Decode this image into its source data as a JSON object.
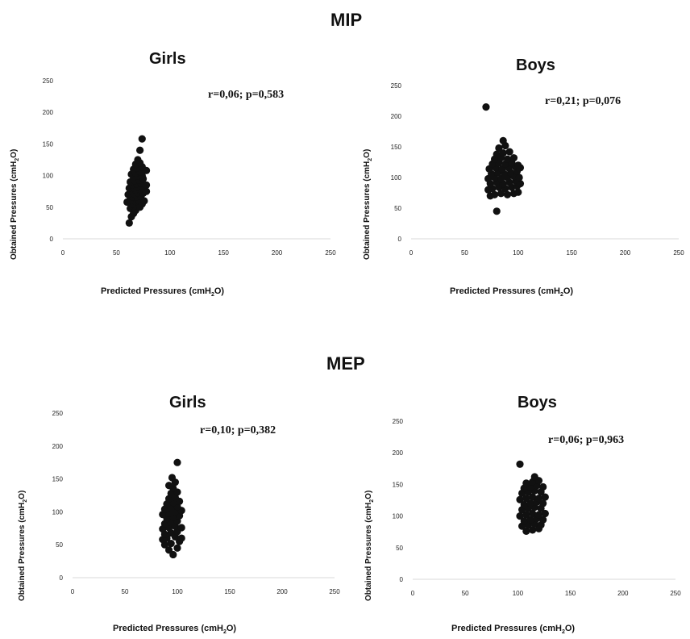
{
  "sections": {
    "mip_title": "MIP",
    "mep_title": "MEP"
  },
  "axis_text": {
    "xlabel_main": "Predicted Pressures (cmH",
    "ylabel_main": "Obtained Pressures (cmH",
    "sub": "2",
    "close": "O)"
  },
  "chart_data": [
    {
      "type": "scatter",
      "title": "Girls",
      "stats_text": "r=0,06; p=0,583",
      "xlabel": "Predicted Pressures (cmH2O)",
      "ylabel": "Obtained Pressures (cmH2O)",
      "xlim": [
        0,
        250
      ],
      "ylim": [
        0,
        250
      ],
      "xticks": [
        0,
        50,
        100,
        150,
        200,
        250
      ],
      "yticks": [
        0,
        50,
        100,
        150,
        200,
        250
      ],
      "points": [
        [
          62,
          25
        ],
        [
          64,
          35
        ],
        [
          66,
          40
        ],
        [
          63,
          48
        ],
        [
          68,
          45
        ],
        [
          70,
          52
        ],
        [
          72,
          50
        ],
        [
          65,
          55
        ],
        [
          60,
          58
        ],
        [
          74,
          55
        ],
        [
          67,
          60
        ],
        [
          63,
          62
        ],
        [
          71,
          62
        ],
        [
          76,
          60
        ],
        [
          65,
          66
        ],
        [
          69,
          67
        ],
        [
          73,
          68
        ],
        [
          61,
          70
        ],
        [
          66,
          72
        ],
        [
          70,
          73
        ],
        [
          75,
          72
        ],
        [
          64,
          76
        ],
        [
          68,
          77
        ],
        [
          72,
          78
        ],
        [
          78,
          75
        ],
        [
          62,
          80
        ],
        [
          66,
          81
        ],
        [
          70,
          82
        ],
        [
          74,
          83
        ],
        [
          65,
          86
        ],
        [
          69,
          87
        ],
        [
          73,
          88
        ],
        [
          78,
          85
        ],
        [
          63,
          90
        ],
        [
          67,
          92
        ],
        [
          71,
          93
        ],
        [
          75,
          95
        ],
        [
          66,
          97
        ],
        [
          70,
          99
        ],
        [
          74,
          100
        ],
        [
          64,
          102
        ],
        [
          68,
          104
        ],
        [
          72,
          106
        ],
        [
          78,
          108
        ],
        [
          66,
          110
        ],
        [
          70,
          112
        ],
        [
          74,
          114
        ],
        [
          68,
          118
        ],
        [
          72,
          120
        ],
        [
          70,
          125
        ],
        [
          72,
          140
        ],
        [
          74,
          158
        ]
      ]
    },
    {
      "type": "scatter",
      "title": "Boys",
      "stats_text": "r=0,21; p=0,076",
      "xlabel": "Predicted Pressures (cmH2O)",
      "ylabel": "Obtained Pressures (cmH2O)",
      "xlim": [
        0,
        250
      ],
      "ylim": [
        0,
        250
      ],
      "xticks": [
        0,
        50,
        100,
        150,
        200,
        250
      ],
      "yticks": [
        0,
        50,
        100,
        150,
        200,
        250
      ],
      "points": [
        [
          70,
          215
        ],
        [
          80,
          45
        ],
        [
          74,
          70
        ],
        [
          78,
          72
        ],
        [
          84,
          74
        ],
        [
          90,
          72
        ],
        [
          96,
          74
        ],
        [
          100,
          76
        ],
        [
          72,
          80
        ],
        [
          76,
          82
        ],
        [
          82,
          84
        ],
        [
          88,
          82
        ],
        [
          94,
          84
        ],
        [
          99,
          86
        ],
        [
          74,
          90
        ],
        [
          80,
          92
        ],
        [
          86,
          90
        ],
        [
          92,
          92
        ],
        [
          98,
          94
        ],
        [
          102,
          90
        ],
        [
          72,
          98
        ],
        [
          78,
          100
        ],
        [
          84,
          98
        ],
        [
          90,
          100
        ],
        [
          96,
          102
        ],
        [
          101,
          100
        ],
        [
          75,
          106
        ],
        [
          81,
          108
        ],
        [
          87,
          106
        ],
        [
          93,
          108
        ],
        [
          99,
          110
        ],
        [
          73,
          114
        ],
        [
          79,
          116
        ],
        [
          85,
          114
        ],
        [
          91,
          116
        ],
        [
          97,
          118
        ],
        [
          102,
          116
        ],
        [
          76,
          122
        ],
        [
          82,
          124
        ],
        [
          88,
          122
        ],
        [
          94,
          124
        ],
        [
          100,
          120
        ],
        [
          78,
          130
        ],
        [
          84,
          132
        ],
        [
          90,
          130
        ],
        [
          96,
          132
        ],
        [
          80,
          138
        ],
        [
          86,
          140
        ],
        [
          92,
          142
        ],
        [
          82,
          148
        ],
        [
          88,
          152
        ],
        [
          86,
          160
        ]
      ]
    },
    {
      "type": "scatter",
      "title": "Girls",
      "stats_text": "r=0,10; p=0,382",
      "xlabel": "Predicted Pressures (cmH2O)",
      "ylabel": "Obtained Pressures (cmH2O)",
      "xlim": [
        0,
        250
      ],
      "ylim": [
        0,
        250
      ],
      "xticks": [
        0,
        50,
        100,
        150,
        200,
        250
      ],
      "yticks": [
        0,
        50,
        100,
        150,
        200,
        250
      ],
      "points": [
        [
          96,
          35
        ],
        [
          92,
          42
        ],
        [
          100,
          45
        ],
        [
          88,
          50
        ],
        [
          94,
          52
        ],
        [
          102,
          55
        ],
        [
          86,
          58
        ],
        [
          90,
          60
        ],
        [
          98,
          62
        ],
        [
          104,
          60
        ],
        [
          88,
          66
        ],
        [
          94,
          68
        ],
        [
          100,
          70
        ],
        [
          86,
          74
        ],
        [
          92,
          76
        ],
        [
          98,
          78
        ],
        [
          104,
          76
        ],
        [
          88,
          82
        ],
        [
          94,
          84
        ],
        [
          100,
          86
        ],
        [
          90,
          90
        ],
        [
          96,
          92
        ],
        [
          102,
          94
        ],
        [
          86,
          96
        ],
        [
          92,
          98
        ],
        [
          98,
          100
        ],
        [
          104,
          102
        ],
        [
          88,
          104
        ],
        [
          94,
          106
        ],
        [
          100,
          108
        ],
        [
          90,
          112
        ],
        [
          96,
          114
        ],
        [
          102,
          116
        ],
        [
          92,
          120
        ],
        [
          98,
          122
        ],
        [
          94,
          128
        ],
        [
          100,
          130
        ],
        [
          96,
          136
        ],
        [
          92,
          140
        ],
        [
          98,
          145
        ],
        [
          95,
          152
        ],
        [
          100,
          175
        ]
      ]
    },
    {
      "type": "scatter",
      "title": "Boys",
      "stats_text": "r=0,06; p=0,963",
      "xlabel": "Predicted Pressures (cmH2O)",
      "ylabel": "Obtained Pressures (cmH2O)",
      "xlim": [
        0,
        250
      ],
      "ylim": [
        0,
        250
      ],
      "xticks": [
        0,
        50,
        100,
        150,
        200,
        250
      ],
      "yticks": [
        0,
        50,
        100,
        150,
        200,
        250
      ],
      "points": [
        [
          102,
          182
        ],
        [
          108,
          76
        ],
        [
          114,
          78
        ],
        [
          120,
          80
        ],
        [
          104,
          84
        ],
        [
          110,
          86
        ],
        [
          116,
          88
        ],
        [
          122,
          86
        ],
        [
          106,
          92
        ],
        [
          112,
          94
        ],
        [
          118,
          96
        ],
        [
          124,
          94
        ],
        [
          102,
          100
        ],
        [
          108,
          102
        ],
        [
          114,
          104
        ],
        [
          120,
          102
        ],
        [
          126,
          104
        ],
        [
          104,
          110
        ],
        [
          110,
          112
        ],
        [
          116,
          114
        ],
        [
          122,
          112
        ],
        [
          106,
          118
        ],
        [
          112,
          120
        ],
        [
          118,
          122
        ],
        [
          124,
          120
        ],
        [
          102,
          126
        ],
        [
          108,
          128
        ],
        [
          114,
          130
        ],
        [
          120,
          128
        ],
        [
          126,
          130
        ],
        [
          104,
          136
        ],
        [
          110,
          138
        ],
        [
          116,
          140
        ],
        [
          122,
          138
        ],
        [
          106,
          144
        ],
        [
          112,
          146
        ],
        [
          118,
          148
        ],
        [
          124,
          146
        ],
        [
          108,
          152
        ],
        [
          114,
          154
        ],
        [
          120,
          156
        ],
        [
          116,
          162
        ]
      ]
    }
  ]
}
